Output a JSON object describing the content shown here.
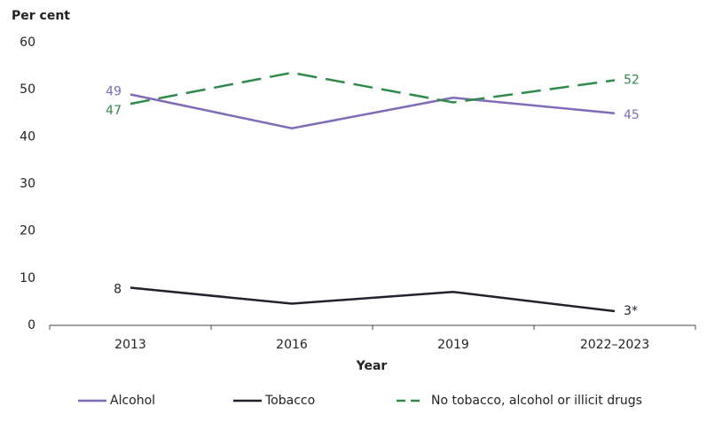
{
  "chart_data": {
    "type": "line",
    "y_label": "Per cent",
    "x_label": "Year",
    "categories": [
      "2013",
      "2016",
      "2019",
      "2022–2023"
    ],
    "series": [
      {
        "name": "Alcohol",
        "color": "#7f6bb8",
        "dashed": false,
        "values": [
          49,
          41.8,
          48.3,
          45
        ],
        "value_labels": [
          "49",
          null,
          null,
          "45"
        ]
      },
      {
        "name": "Tobacco",
        "color": "#24212f",
        "dashed": false,
        "values": [
          8,
          4.6,
          7.1,
          3
        ],
        "value_labels": [
          "8",
          null,
          null,
          "3*"
        ]
      },
      {
        "name": "No tobacco, alcohol or illicit drugs",
        "color": "#2f8a4c",
        "dashed": true,
        "values": [
          47,
          53.6,
          47.3,
          52
        ],
        "value_labels": [
          "47",
          null,
          null,
          "52"
        ]
      }
    ],
    "ylim": [
      0,
      60
    ],
    "yticks": [
      0,
      10,
      20,
      30,
      40,
      50,
      60
    ],
    "grid": false,
    "legend": "bottom"
  }
}
